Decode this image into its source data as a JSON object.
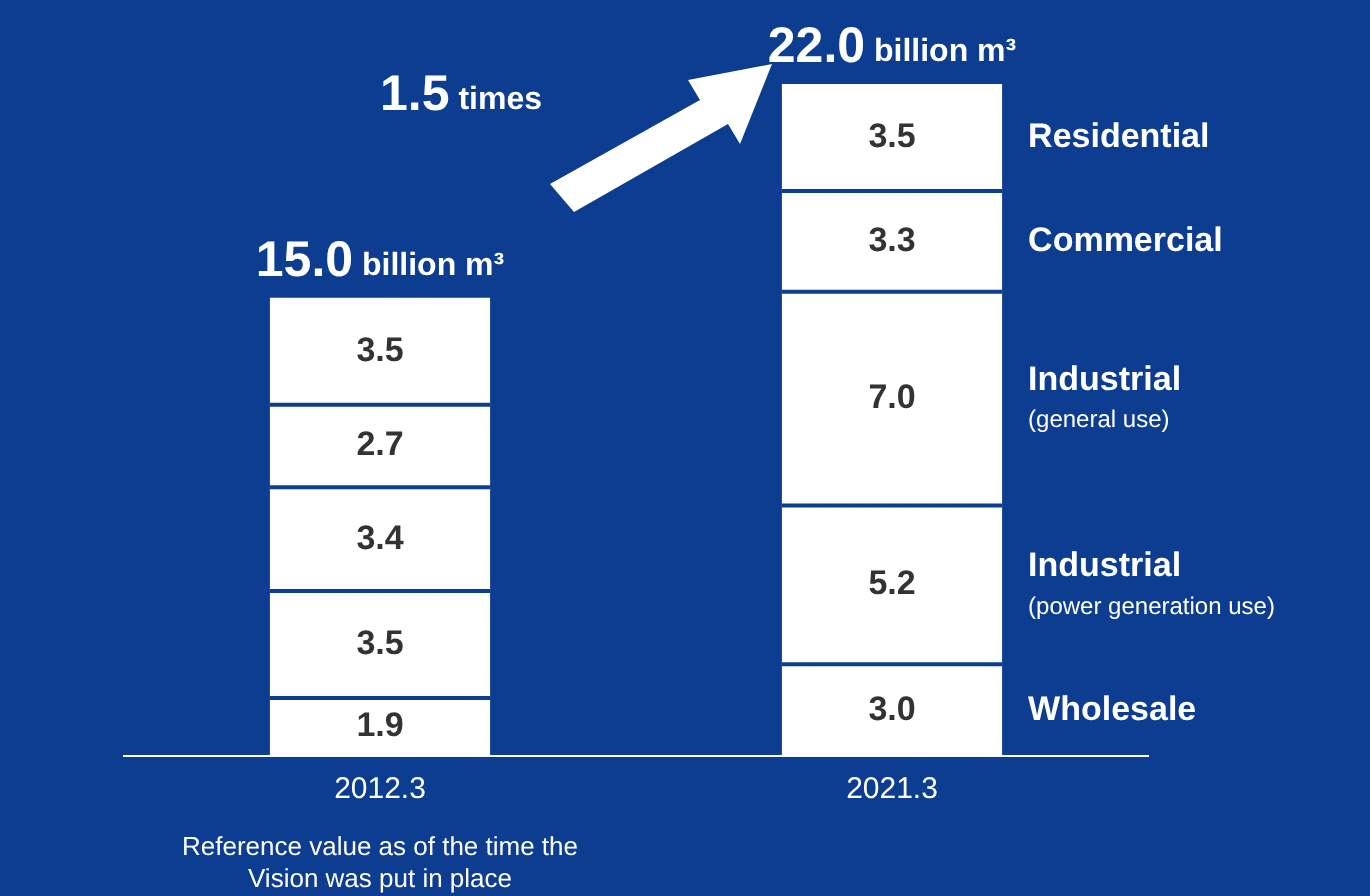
{
  "chart_data": {
    "type": "bar",
    "stacked": true,
    "categories": [
      "2012.3",
      "2021.3"
    ],
    "series": [
      {
        "name": "Wholesale",
        "color": "#ffffff",
        "values": [
          1.9,
          3.0
        ],
        "value_labels": [
          "1.9",
          "3.0"
        ]
      },
      {
        "name": "Industrial\n(power generation use)",
        "color": "#ffffff",
        "values": [
          3.5,
          5.2
        ],
        "value_labels": [
          "3.5",
          "5.2"
        ]
      },
      {
        "name": "Industrial\n(general use)",
        "color": "#ffffff",
        "values": [
          3.4,
          7.0
        ],
        "value_labels": [
          "3.4",
          "7.0"
        ]
      },
      {
        "name": "Commercial",
        "color": "#ffffff",
        "values": [
          2.7,
          3.3
        ],
        "value_labels": [
          "2.7",
          "3.3"
        ]
      },
      {
        "name": "Residential",
        "color": "#ffffff",
        "values": [
          3.5,
          3.5
        ],
        "value_labels": [
          "3.5",
          "3.5"
        ]
      }
    ],
    "totals": [
      "15.0 billion m³",
      "22.0 billion m³"
    ],
    "legend": false,
    "grid": false,
    "annotations": [
      "1.5 times",
      "Reference value as of the time the Vision was put in place"
    ]
  }
}
